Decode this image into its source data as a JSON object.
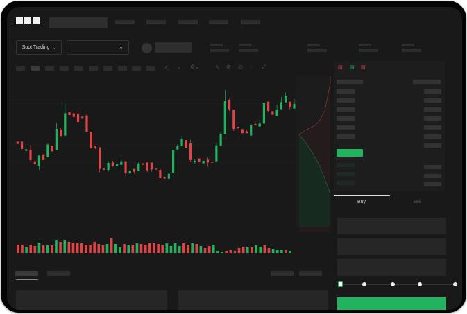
{
  "brand": {
    "logo": "OKX"
  },
  "header": {
    "market_selector_label": "Spot Trading",
    "market_selector_icon": "chevron-down-icon",
    "pair_dropdown_icon": "chevron-down-icon"
  },
  "trade_panel": {
    "tabs": [
      {
        "label": "Buy",
        "active": true
      },
      {
        "label": "Sell",
        "active": false
      }
    ],
    "slider_percent": 0
  },
  "colors": {
    "up": "#22b35e",
    "down": "#e04444",
    "background": "#191919",
    "panel": "#1d1d1d",
    "placeholder": "#2e2e2e"
  },
  "chart_data": {
    "type": "candlestick",
    "candles": [
      [
        200,
        200,
        190,
        190
      ],
      [
        200,
        202,
        165,
        168
      ],
      [
        160,
        167,
        160,
        167
      ],
      [
        165,
        185,
        115,
        120
      ],
      [
        115,
        118,
        98,
        102
      ],
      [
        93,
        140,
        78,
        140
      ],
      [
        145,
        145,
        120,
        120
      ],
      [
        132,
        192,
        132,
        187
      ],
      [
        183,
        183,
        158,
        158
      ],
      [
        162,
        282,
        162,
        255
      ],
      [
        252,
        260,
        224,
        224
      ],
      [
        226,
        365,
        226,
        323
      ],
      [
        330,
        330,
        315,
        315
      ],
      [
        322,
        327,
        303,
        307
      ],
      [
        320,
        337,
        280,
        285
      ],
      [
        308,
        308,
        302,
        302
      ],
      [
        313,
        320,
        240,
        243
      ],
      [
        243,
        243,
        172,
        172
      ],
      [
        183,
        183,
        168,
        175
      ],
      [
        175,
        175,
        67,
        82
      ],
      [
        83,
        83,
        78,
        78
      ],
      [
        78,
        115,
        70,
        108
      ],
      [
        110,
        118,
        90,
        95
      ],
      [
        95,
        102,
        78,
        102
      ],
      [
        100,
        122,
        100,
        115
      ],
      [
        115,
        115,
        52,
        64
      ],
      [
        63,
        75,
        58,
        75
      ],
      [
        82,
        82,
        62,
        70
      ],
      [
        73,
        112,
        73,
        105
      ],
      [
        106,
        106,
        100,
        100
      ],
      [
        110,
        110,
        67,
        76
      ],
      [
        110,
        110,
        70,
        80
      ],
      [
        83,
        83,
        80,
        80
      ],
      [
        78,
        86,
        42,
        42
      ],
      [
        46,
        46,
        40,
        40
      ],
      [
        40,
        65,
        40,
        61
      ],
      [
        65,
        180,
        60,
        164
      ],
      [
        166,
        188,
        166,
        180
      ],
      [
        180,
        225,
        180,
        210
      ],
      [
        207,
        207,
        172,
        172
      ],
      [
        192,
        208,
        113,
        120
      ],
      [
        113,
        124,
        105,
        117
      ],
      [
        127,
        127,
        113,
        113
      ],
      [
        106,
        117,
        106,
        117
      ],
      [
        122,
        132,
        90,
        110
      ],
      [
        114,
        114,
        109,
        109
      ],
      [
        115,
        195,
        110,
        184
      ],
      [
        182,
        242,
        182,
        234
      ],
      [
        233,
        423,
        233,
        376
      ],
      [
        381,
        385,
        332,
        340
      ],
      [
        338,
        338,
        245,
        255
      ],
      [
        264,
        264,
        257,
        257
      ],
      [
        254,
        254,
        232,
        237
      ],
      [
        244,
        250,
        236,
        236
      ],
      [
        226,
        280,
        226,
        272
      ],
      [
        276,
        287,
        270,
        270
      ],
      [
        265,
        295,
        265,
        278
      ],
      [
        278,
        366,
        278,
        366
      ],
      [
        373,
        373,
        328,
        333
      ],
      [
        332,
        332,
        316,
        316
      ],
      [
        310,
        360,
        310,
        338
      ],
      [
        340,
        393,
        340,
        371
      ],
      [
        370,
        413,
        370,
        399
      ],
      [
        373,
        373,
        338,
        350
      ],
      [
        343,
        384,
        343,
        363
      ]
    ],
    "volume": [
      12,
      12,
      8,
      12,
      10,
      15,
      11,
      11,
      11,
      19,
      16,
      19,
      16,
      15,
      14,
      14,
      12,
      12,
      16,
      13,
      11,
      13,
      21,
      13,
      8,
      13,
      11,
      12,
      14,
      13,
      12,
      14,
      14,
      13,
      11,
      14,
      10,
      14,
      10,
      14,
      12,
      14,
      13,
      10,
      7,
      10,
      12,
      3,
      2,
      3,
      4,
      3,
      7,
      9,
      8,
      8,
      11,
      9,
      11,
      7,
      6,
      4,
      5,
      4,
      3
    ]
  }
}
